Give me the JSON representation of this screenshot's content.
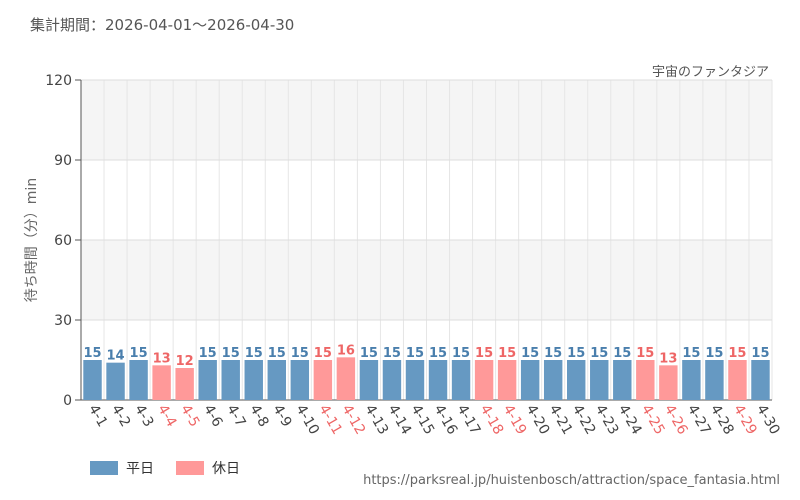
{
  "header": {
    "period": "集計期間：2026-04-01～2026-04-30",
    "attraction": "宇宙のファンタジア"
  },
  "footer": {
    "source_url": "https://parksreal.jp/huistenbosch/attraction/space_fantasia.html"
  },
  "legend": {
    "weekday_label": "平日",
    "holiday_label": "休日"
  },
  "colors": {
    "weekday": "#6699c2",
    "holiday": "#ff9999",
    "weekday_text": "#4a7fad",
    "holiday_text": "#ee6666"
  },
  "chart_data": {
    "type": "bar",
    "ylabel": "待ち時間（分）min",
    "ylim": [
      0,
      120
    ],
    "yticks": [
      0,
      30,
      60,
      90,
      120
    ],
    "categories": [
      "4-1",
      "4-2",
      "4-3",
      "4-4",
      "4-5",
      "4-6",
      "4-7",
      "4-8",
      "4-9",
      "4-10",
      "4-11",
      "4-12",
      "4-13",
      "4-14",
      "4-15",
      "4-16",
      "4-17",
      "4-18",
      "4-19",
      "4-20",
      "4-21",
      "4-22",
      "4-23",
      "4-24",
      "4-25",
      "4-26",
      "4-27",
      "4-28",
      "4-29",
      "4-30"
    ],
    "values": [
      15,
      14,
      15,
      13,
      12,
      15,
      15,
      15,
      15,
      15,
      15,
      16,
      15,
      15,
      15,
      15,
      15,
      15,
      15,
      15,
      15,
      15,
      15,
      15,
      15,
      13,
      15,
      15,
      15,
      15
    ],
    "day_types": [
      "weekday",
      "weekday",
      "weekday",
      "holiday",
      "holiday",
      "weekday",
      "weekday",
      "weekday",
      "weekday",
      "weekday",
      "holiday",
      "holiday",
      "weekday",
      "weekday",
      "weekday",
      "weekday",
      "weekday",
      "holiday",
      "holiday",
      "weekday",
      "weekday",
      "weekday",
      "weekday",
      "weekday",
      "holiday",
      "holiday",
      "weekday",
      "weekday",
      "holiday",
      "weekday"
    ],
    "grid": true,
    "legend_position": "bottom-left"
  }
}
